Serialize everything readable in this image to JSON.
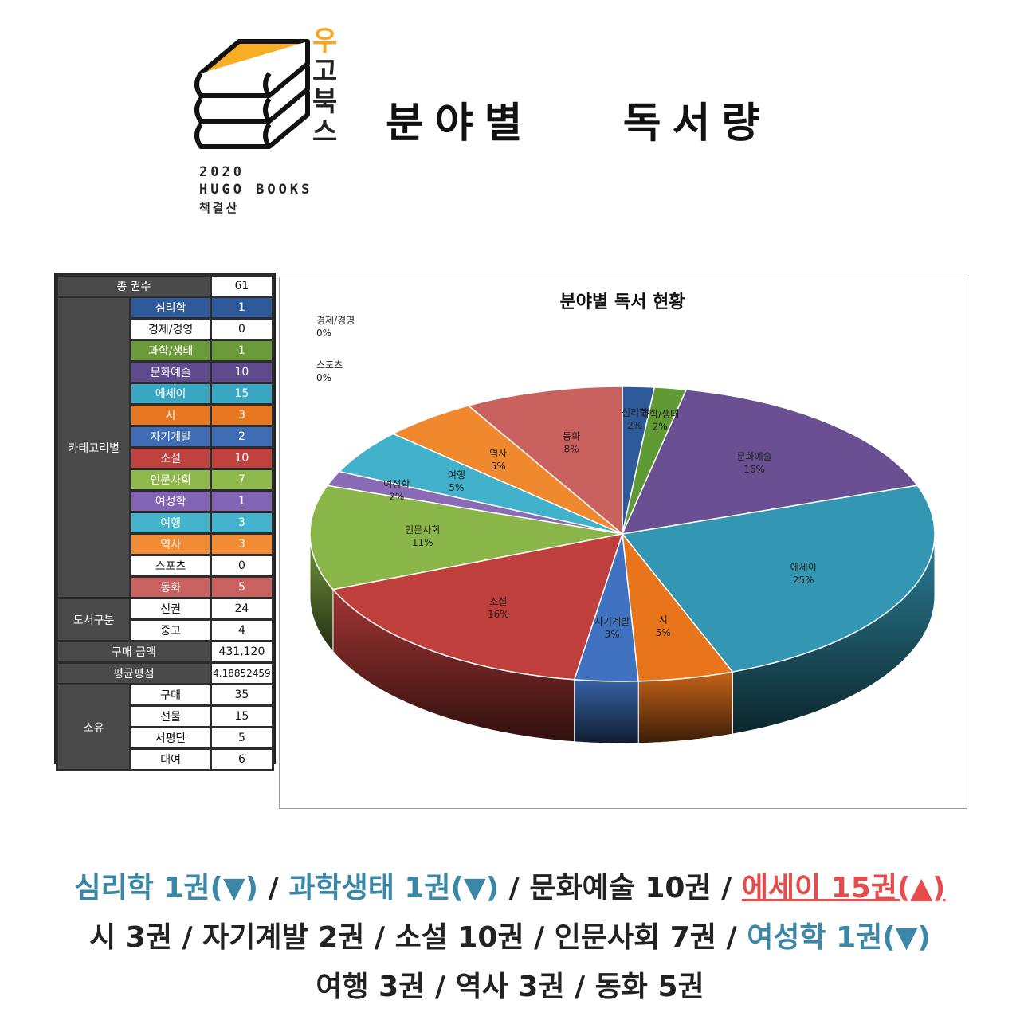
{
  "header": {
    "logo_vertical": [
      "우",
      "고",
      "북",
      "스"
    ],
    "logo_year": "2020",
    "logo_name": "HUGO BOOKS",
    "logo_sub": "책결산",
    "title": "분야별  독서량"
  },
  "stats_table": {
    "total_label": "총 권수",
    "total_value": "61",
    "category_group": "카테고리별",
    "categories": [
      {
        "label": "심리학",
        "value": "1",
        "color": "#2e5a9a"
      },
      {
        "label": "경제/경영",
        "value": "0",
        "color": "#ffffff"
      },
      {
        "label": "과학/생태",
        "value": "1",
        "color": "#6b9a3a"
      },
      {
        "label": "문화예술",
        "value": "10",
        "color": "#5e4a8c"
      },
      {
        "label": "에세이",
        "value": "15",
        "color": "#3aa6c2"
      },
      {
        "label": "시",
        "value": "3",
        "color": "#e87722"
      },
      {
        "label": "자기계발",
        "value": "2",
        "color": "#3e6db5"
      },
      {
        "label": "소설",
        "value": "10",
        "color": "#c0423e"
      },
      {
        "label": "인문사회",
        "value": "7",
        "color": "#8fb84c"
      },
      {
        "label": "여성학",
        "value": "1",
        "color": "#8363b3"
      },
      {
        "label": "여행",
        "value": "3",
        "color": "#45b3cc"
      },
      {
        "label": "역사",
        "value": "3",
        "color": "#f18c35"
      },
      {
        "label": "스포츠",
        "value": "0",
        "color": "#ffffff"
      },
      {
        "label": "동화",
        "value": "5",
        "color": "#c96260"
      }
    ],
    "type_group": "도서구분",
    "types": [
      {
        "label": "신권",
        "value": "24"
      },
      {
        "label": "중고",
        "value": "4"
      }
    ],
    "price_label": "구매 금액",
    "price_value": "431,120",
    "rating_label": "평균평점",
    "rating_value": "4.18852459",
    "own_group": "소유",
    "own": [
      {
        "label": "구매",
        "value": "35"
      },
      {
        "label": "선물",
        "value": "15"
      },
      {
        "label": "서평단",
        "value": "5"
      },
      {
        "label": "대여",
        "value": "6"
      }
    ]
  },
  "chart_data": {
    "type": "pie",
    "title": "분야별 독서 현황",
    "slices": [
      {
        "label": "심리학",
        "value": 1,
        "percent": "2%",
        "color": "#2e5a9a"
      },
      {
        "label": "과학/생태",
        "value": 1,
        "percent": "2%",
        "color": "#5f9a35"
      },
      {
        "label": "문화예술",
        "value": 10,
        "percent": "16%",
        "color": "#6a4f92"
      },
      {
        "label": "에세이",
        "value": 15,
        "percent": "25%",
        "color": "#3396b3"
      },
      {
        "label": "시",
        "value": 3,
        "percent": "5%",
        "color": "#e8741c"
      },
      {
        "label": "자기계발",
        "value": 2,
        "percent": "3%",
        "color": "#3f72c0"
      },
      {
        "label": "소설",
        "value": 10,
        "percent": "16%",
        "color": "#bf3f3c"
      },
      {
        "label": "인문사회",
        "value": 7,
        "percent": "11%",
        "color": "#8ab548"
      },
      {
        "label": "여성학",
        "value": 1,
        "percent": "2%",
        "color": "#8a6bb5"
      },
      {
        "label": "여행",
        "value": 3,
        "percent": "5%",
        "color": "#41b1cc"
      },
      {
        "label": "역사",
        "value": 3,
        "percent": "5%",
        "color": "#f0882e"
      },
      {
        "label": "동화",
        "value": 5,
        "percent": "8%",
        "color": "#c9625f"
      }
    ],
    "zero_labels": [
      {
        "label": "경제/경영",
        "percent": "0%"
      },
      {
        "label": "스포츠",
        "percent": "0%"
      }
    ]
  },
  "summary": {
    "lines": [
      [
        {
          "text": "심리학  1권(▼)",
          "style": "blue"
        },
        {
          "text": " / ",
          "style": "plain"
        },
        {
          "text": "과학생태 1권(▼)",
          "style": "blue"
        },
        {
          "text": " / 문화예술 10권 / ",
          "style": "plain"
        },
        {
          "text": "에세이 15권(▲)",
          "style": "red"
        }
      ],
      [
        {
          "text": "시 3권 / 자기계발 2권 / 소설 10권 / 인문사회 7권 / ",
          "style": "plain"
        },
        {
          "text": "여성학 1권(▼)",
          "style": "blue"
        }
      ],
      [
        {
          "text": "여행 3권 / 역사 3권 / 동화 5권",
          "style": "plain"
        }
      ]
    ]
  }
}
